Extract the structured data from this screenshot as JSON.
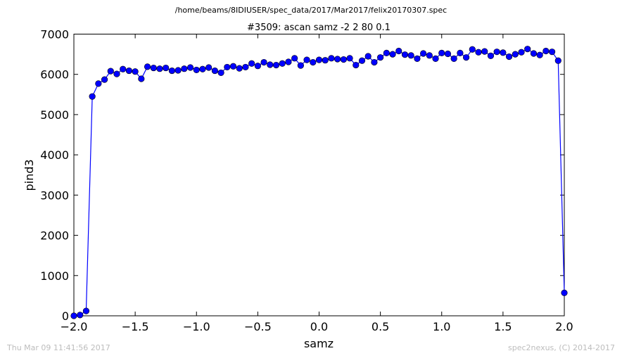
{
  "header": {
    "file_path": "/home/beams/8IDIUSER/spec_data/2017/Mar2017/felix20170307.spec"
  },
  "footer": {
    "timestamp": "Thu Mar 09 11:41:56 2017",
    "credit": "spec2nexus, (C) 2014-2017"
  },
  "chart_data": {
    "type": "line",
    "title": "#3509: ascan  samz -2 2  80 0.1",
    "xlabel": "samz",
    "ylabel": "pind3",
    "xlim": [
      -2.0,
      2.0
    ],
    "ylim": [
      0,
      7000
    ],
    "xticks": [
      -2.0,
      -1.5,
      -1.0,
      -0.5,
      0.0,
      0.5,
      1.0,
      1.5,
      2.0
    ],
    "xtick_labels": [
      "−2.0",
      "−1.5",
      "−1.0",
      "−0.5",
      "0.0",
      "0.5",
      "1.0",
      "1.5",
      "2.0"
    ],
    "yticks": [
      0,
      1000,
      2000,
      3000,
      4000,
      5000,
      6000,
      7000
    ],
    "ytick_labels": [
      "0",
      "1000",
      "2000",
      "3000",
      "4000",
      "5000",
      "6000",
      "7000"
    ],
    "grid": false,
    "marker": "circle",
    "color": "#0000ff",
    "x": [
      -2.0,
      -1.95,
      -1.9,
      -1.85,
      -1.8,
      -1.75,
      -1.7,
      -1.65,
      -1.6,
      -1.55,
      -1.5,
      -1.45,
      -1.4,
      -1.35,
      -1.3,
      -1.25,
      -1.2,
      -1.15,
      -1.1,
      -1.05,
      -1.0,
      -0.95,
      -0.9,
      -0.85,
      -0.8,
      -0.75,
      -0.7,
      -0.65,
      -0.6,
      -0.55,
      -0.5,
      -0.45,
      -0.4,
      -0.35,
      -0.3,
      -0.25,
      -0.2,
      -0.15,
      -0.1,
      -0.05,
      0.0,
      0.05,
      0.1,
      0.15,
      0.2,
      0.25,
      0.3,
      0.35,
      0.4,
      0.45,
      0.5,
      0.55,
      0.6,
      0.65,
      0.7,
      0.75,
      0.8,
      0.85,
      0.9,
      0.95,
      1.0,
      1.05,
      1.1,
      1.15,
      1.2,
      1.25,
      1.3,
      1.35,
      1.4,
      1.45,
      1.5,
      1.55,
      1.6,
      1.65,
      1.7,
      1.75,
      1.8,
      1.85,
      1.9,
      1.95,
      2.0
    ],
    "y": [
      0,
      20,
      120,
      5450,
      5770,
      5870,
      6080,
      6010,
      6130,
      6090,
      6070,
      5890,
      6190,
      6160,
      6140,
      6160,
      6090,
      6100,
      6140,
      6170,
      6110,
      6130,
      6170,
      6090,
      6040,
      6180,
      6200,
      6150,
      6180,
      6270,
      6210,
      6300,
      6240,
      6230,
      6270,
      6310,
      6400,
      6220,
      6360,
      6300,
      6360,
      6350,
      6400,
      6380,
      6370,
      6400,
      6230,
      6340,
      6450,
      6300,
      6420,
      6530,
      6500,
      6580,
      6490,
      6470,
      6390,
      6520,
      6470,
      6390,
      6530,
      6510,
      6390,
      6530,
      6420,
      6620,
      6550,
      6570,
      6460,
      6560,
      6540,
      6440,
      6500,
      6550,
      6630,
      6520,
      6480,
      6580,
      6560,
      6340,
      570
    ]
  }
}
